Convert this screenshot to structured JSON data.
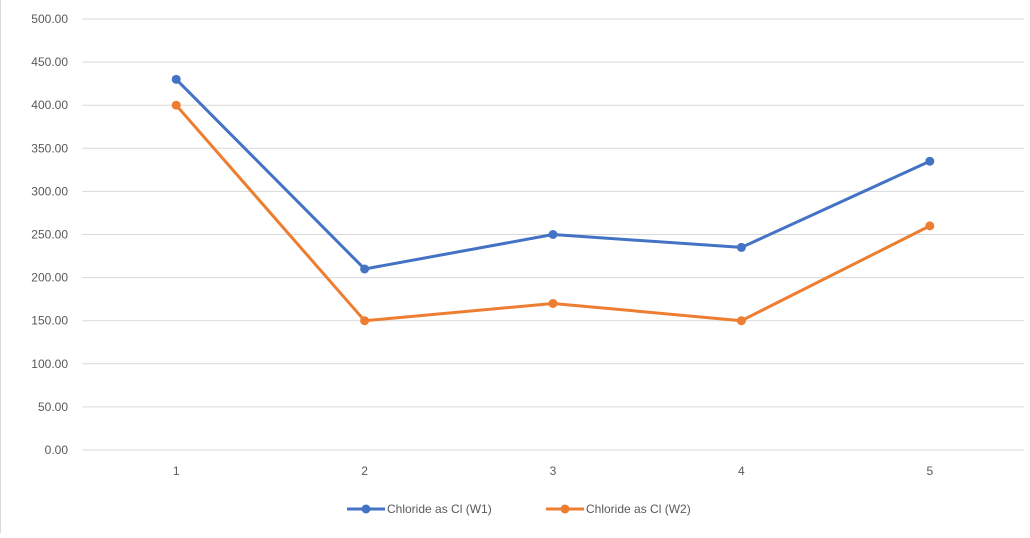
{
  "chart_data": {
    "type": "line",
    "title": "",
    "xlabel": "",
    "ylabel": "",
    "categories": [
      "1",
      "2",
      "3",
      "4",
      "5"
    ],
    "ylim": [
      0,
      500
    ],
    "y_ticks": [
      "0.00",
      "50.00",
      "100.00",
      "150.00",
      "200.00",
      "250.00",
      "300.00",
      "350.00",
      "400.00",
      "450.00",
      "500.00"
    ],
    "y_tick_values": [
      0,
      50,
      100,
      150,
      200,
      250,
      300,
      350,
      400,
      450,
      500
    ],
    "grid": "horizontal",
    "legend_position": "bottom",
    "series": [
      {
        "name": "Chloride as Cl (W1)",
        "color": "#4472C4",
        "values": [
          430,
          210,
          250,
          235,
          335
        ]
      },
      {
        "name": "Chloride as Cl (W2)",
        "color": "#ED7D31",
        "values": [
          400,
          150,
          170,
          150,
          260
        ]
      }
    ]
  }
}
